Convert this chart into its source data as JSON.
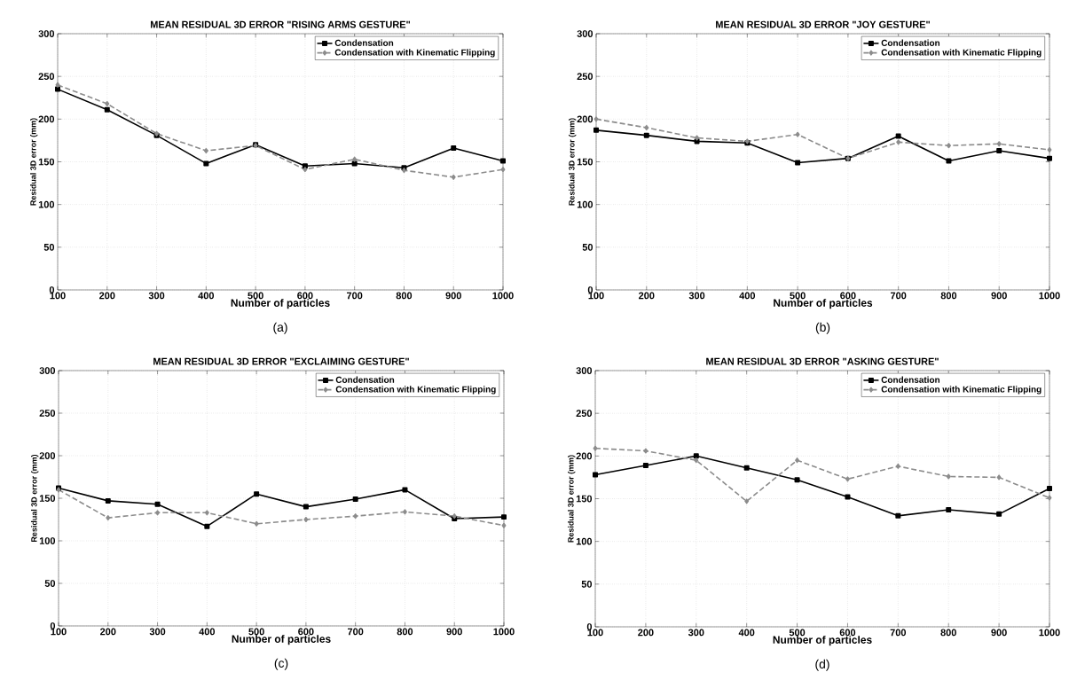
{
  "chart_data": [
    {
      "type": "line",
      "title": "MEAN RESIDUAL 3D ERROR \"RISING ARMS GESTURE\"",
      "xlabel": "Number of particles",
      "ylabel": "Residual 3D error (mm)",
      "annotations": [
        "(a)"
      ],
      "x": [
        100,
        200,
        300,
        400,
        500,
        600,
        700,
        800,
        900,
        1000
      ],
      "xlim": [
        100,
        1000
      ],
      "ylim": [
        0,
        300
      ],
      "xticks": [
        100,
        200,
        300,
        400,
        500,
        600,
        700,
        800,
        900,
        1000
      ],
      "yticks": [
        0,
        50,
        100,
        150,
        200,
        250,
        300
      ],
      "grid": true,
      "legend": "top right",
      "series": [
        {
          "name": "Condensation",
          "color": "#000000",
          "marker": "square",
          "line_style": "solid",
          "values": [
            235,
            211,
            181,
            148,
            170,
            145,
            148,
            143,
            166,
            151
          ]
        },
        {
          "name": "Condensation with Kinematic Flipping",
          "color": "#8c8c8c",
          "marker": "diamond",
          "line_style": "dashed",
          "values": [
            240,
            218,
            183,
            163,
            169,
            141,
            153,
            140,
            132,
            141
          ]
        }
      ]
    },
    {
      "type": "line",
      "title": "MEAN RESIDUAL 3D ERROR \"JOY GESTURE\"",
      "xlabel": "Number of particles",
      "ylabel": "Residual 3D error (mm)",
      "annotations": [
        "(b)"
      ],
      "x": [
        100,
        200,
        300,
        400,
        500,
        600,
        700,
        800,
        900,
        1000
      ],
      "xlim": [
        100,
        1000
      ],
      "ylim": [
        0,
        300
      ],
      "xticks": [
        100,
        200,
        300,
        400,
        500,
        600,
        700,
        800,
        900,
        1000
      ],
      "yticks": [
        0,
        50,
        100,
        150,
        200,
        250,
        300
      ],
      "grid": true,
      "legend": "top right",
      "series": [
        {
          "name": "Condensation",
          "color": "#000000",
          "marker": "square",
          "line_style": "solid",
          "values": [
            187,
            181,
            174,
            172,
            149,
            154,
            180,
            151,
            163,
            154
          ]
        },
        {
          "name": "Condensation with Kinematic Flipping",
          "color": "#8c8c8c",
          "marker": "diamond",
          "line_style": "dashed",
          "values": [
            200,
            190,
            178,
            174,
            182,
            154,
            173,
            169,
            171,
            164
          ]
        }
      ]
    },
    {
      "type": "line",
      "title": "MEAN RESIDUAL 3D ERROR \"EXCLAIMING GESTURE\"",
      "xlabel": "Number of particles",
      "ylabel": "Residual 3D error (mm)",
      "annotations": [
        "(c)"
      ],
      "x": [
        100,
        200,
        300,
        400,
        500,
        600,
        700,
        800,
        900,
        1000
      ],
      "xlim": [
        100,
        1000
      ],
      "ylim": [
        0,
        300
      ],
      "xticks": [
        100,
        200,
        300,
        400,
        500,
        600,
        700,
        800,
        900,
        1000
      ],
      "yticks": [
        0,
        50,
        100,
        150,
        200,
        250,
        300
      ],
      "grid": true,
      "legend": "top right",
      "series": [
        {
          "name": "Condensation",
          "color": "#000000",
          "marker": "square",
          "line_style": "solid",
          "values": [
            162,
            147,
            143,
            117,
            155,
            140,
            149,
            160,
            126,
            128
          ]
        },
        {
          "name": "Condensation with Kinematic Flipping",
          "color": "#8c8c8c",
          "marker": "diamond",
          "line_style": "dashed",
          "values": [
            160,
            127,
            133,
            133,
            120,
            125,
            129,
            134,
            129,
            118
          ]
        }
      ]
    },
    {
      "type": "line",
      "title": "MEAN RESIDUAL 3D ERROR \"ASKING GESTURE\"",
      "xlabel": "Number of particles",
      "ylabel": "Residual 3D error (mm)",
      "annotations": [
        "(d)"
      ],
      "x": [
        100,
        200,
        300,
        400,
        500,
        600,
        700,
        800,
        900,
        1000
      ],
      "xlim": [
        100,
        1000
      ],
      "ylim": [
        0,
        300
      ],
      "xticks": [
        100,
        200,
        300,
        400,
        500,
        600,
        700,
        800,
        900,
        1000
      ],
      "yticks": [
        0,
        50,
        100,
        150,
        200,
        250,
        300
      ],
      "grid": true,
      "legend": "top right",
      "series": [
        {
          "name": "Condensation",
          "color": "#000000",
          "marker": "square",
          "line_style": "solid",
          "values": [
            178,
            189,
            200,
            186,
            172,
            152,
            130,
            137,
            132,
            162
          ]
        },
        {
          "name": "Condensation with Kinematic Flipping",
          "color": "#8c8c8c",
          "marker": "diamond",
          "line_style": "dashed",
          "values": [
            209,
            206,
            195,
            147,
            195,
            173,
            188,
            176,
            175,
            151
          ]
        }
      ]
    }
  ]
}
